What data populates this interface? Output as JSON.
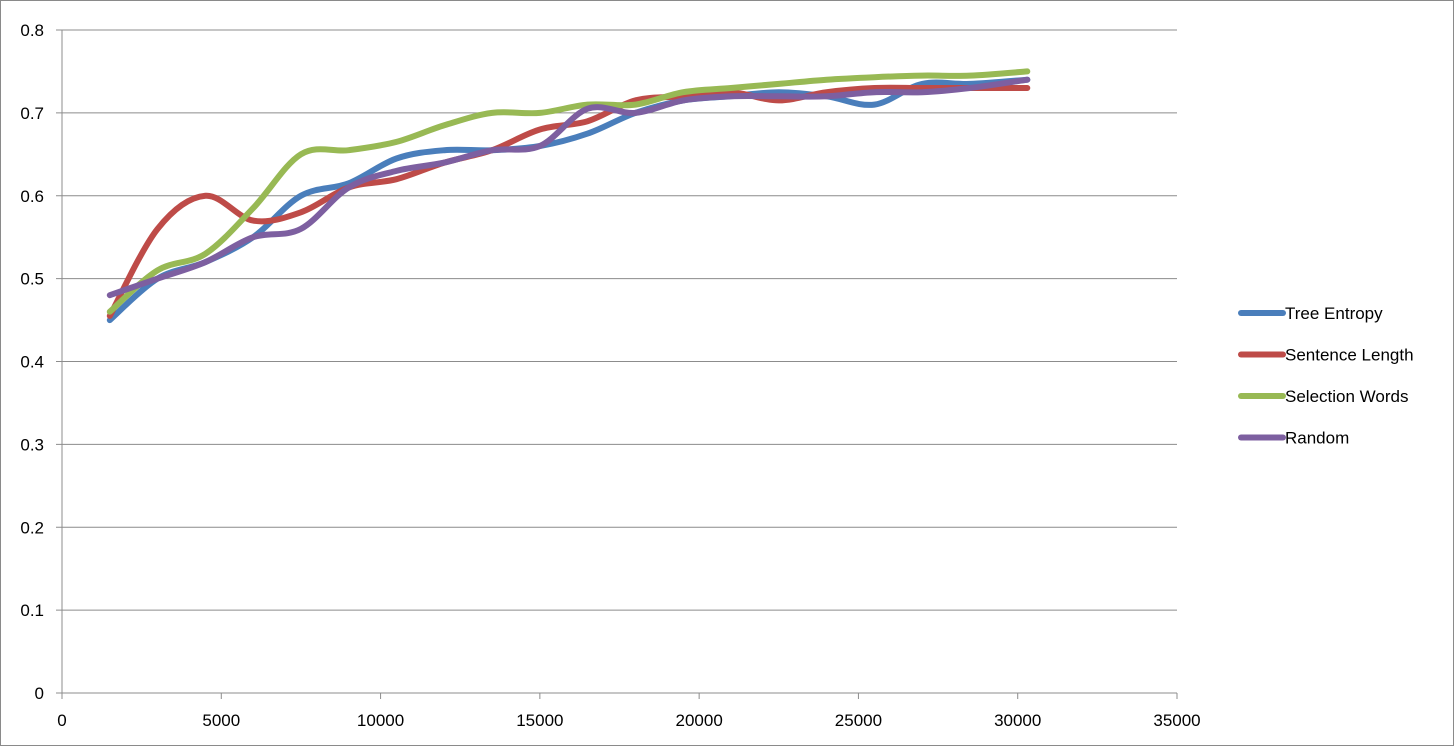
{
  "chart_data": {
    "type": "line",
    "title": "",
    "xlabel": "",
    "ylabel": "",
    "xlim": [
      0,
      35000
    ],
    "ylim": [
      0,
      0.8
    ],
    "x_ticks": [
      "0",
      "5000",
      "10000",
      "15000",
      "20000",
      "25000",
      "30000",
      "35000"
    ],
    "y_ticks": [
      "0",
      "0.1",
      "0.2",
      "0.3",
      "0.4",
      "0.5",
      "0.6",
      "0.7",
      "0.8"
    ],
    "grid": "horizontal",
    "legend_position": "right",
    "series": [
      {
        "name": "Tree Entropy",
        "color": "#4a7ebb",
        "x": [
          1500,
          3000,
          4500,
          6000,
          7500,
          9000,
          10500,
          12000,
          13500,
          15000,
          16500,
          18000,
          19500,
          21000,
          22500,
          24000,
          25500,
          27000,
          28500,
          30300
        ],
        "y": [
          0.45,
          0.5,
          0.52,
          0.55,
          0.6,
          0.615,
          0.645,
          0.655,
          0.655,
          0.66,
          0.675,
          0.7,
          0.715,
          0.72,
          0.725,
          0.72,
          0.71,
          0.735,
          0.735,
          0.74
        ]
      },
      {
        "name": "Sentence Length",
        "color": "#be4b48",
        "x": [
          1500,
          3000,
          4500,
          6000,
          7500,
          9000,
          10500,
          12000,
          13500,
          15000,
          16500,
          18000,
          19500,
          21000,
          22500,
          24000,
          25500,
          27000,
          28500,
          30300
        ],
        "y": [
          0.455,
          0.56,
          0.6,
          0.57,
          0.58,
          0.61,
          0.62,
          0.64,
          0.655,
          0.68,
          0.69,
          0.715,
          0.72,
          0.725,
          0.715,
          0.725,
          0.73,
          0.73,
          0.73,
          0.73
        ]
      },
      {
        "name": "Selection Words",
        "color": "#98b954",
        "x": [
          1500,
          3000,
          4500,
          6000,
          7500,
          9000,
          10500,
          12000,
          13500,
          15000,
          16500,
          18000,
          19500,
          21000,
          22500,
          24000,
          25500,
          27000,
          28500,
          30300
        ],
        "y": [
          0.46,
          0.51,
          0.53,
          0.585,
          0.65,
          0.655,
          0.665,
          0.685,
          0.7,
          0.7,
          0.71,
          0.71,
          0.725,
          0.73,
          0.735,
          0.74,
          0.743,
          0.745,
          0.745,
          0.75
        ]
      },
      {
        "name": "Random",
        "color": "#7d5fa0",
        "x": [
          1500,
          3000,
          4500,
          6000,
          7500,
          9000,
          10500,
          12000,
          13500,
          15000,
          16500,
          18000,
          19500,
          21000,
          22500,
          24000,
          25500,
          27000,
          28500,
          30300
        ],
        "y": [
          0.48,
          0.5,
          0.52,
          0.55,
          0.56,
          0.61,
          0.63,
          0.64,
          0.655,
          0.66,
          0.705,
          0.7,
          0.715,
          0.72,
          0.72,
          0.72,
          0.725,
          0.725,
          0.73,
          0.74
        ]
      }
    ]
  }
}
